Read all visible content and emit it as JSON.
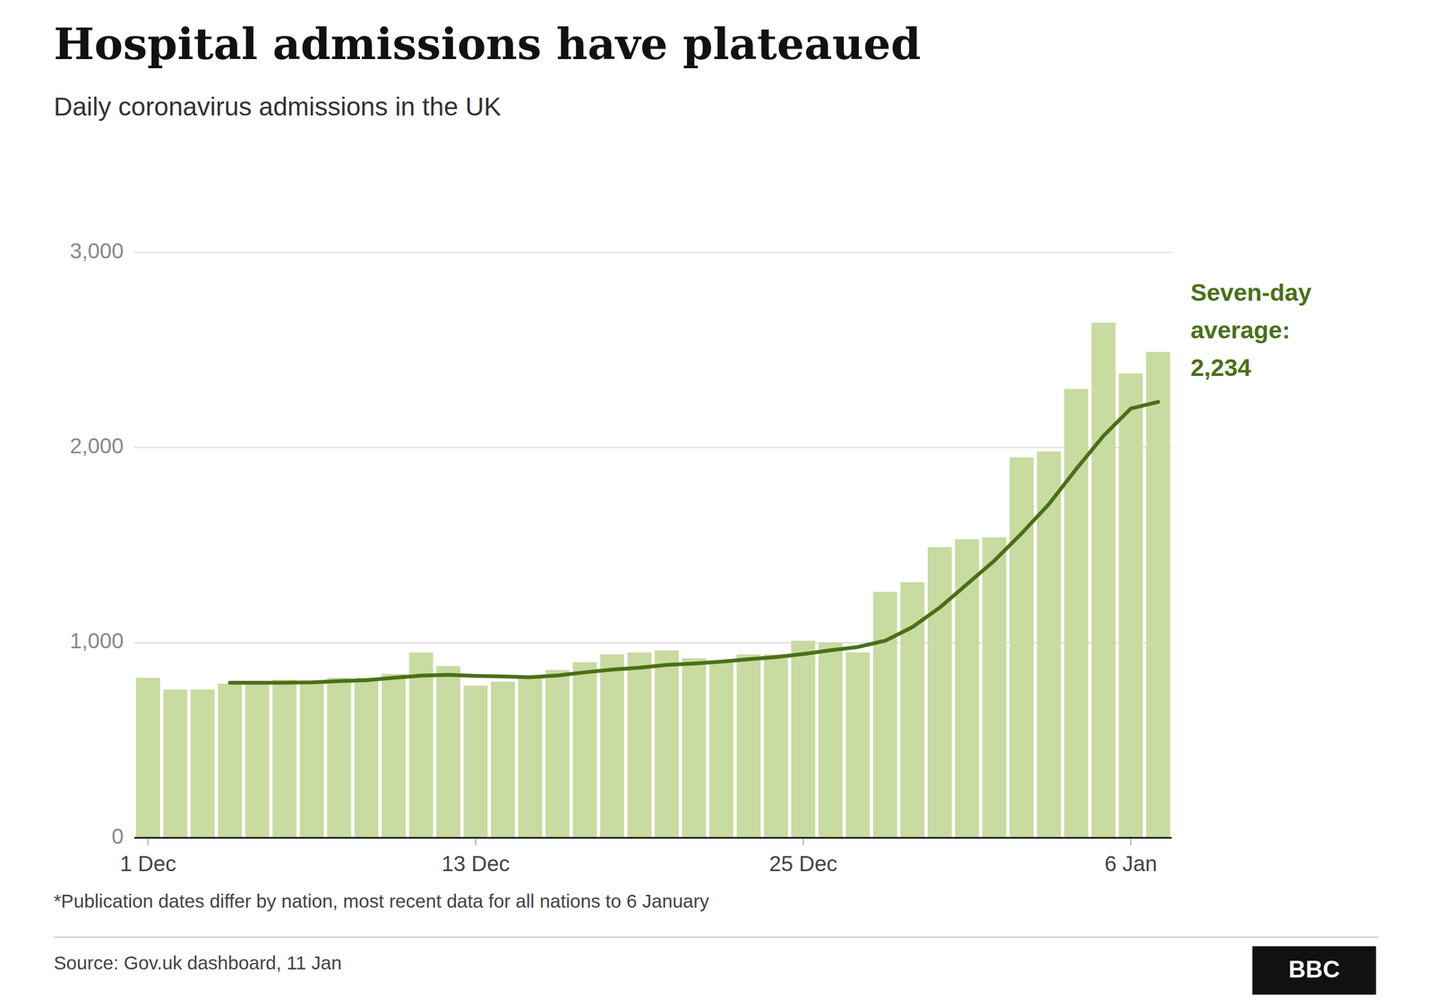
{
  "chart_data": {
    "type": "bar",
    "title": "Hospital admissions have plateaued",
    "subtitle": "Daily coronavirus admissions in the UK",
    "annotation": "Seven-day\naverage:\n2,234",
    "footnote": "*Publication dates differ by nation, most recent data for all nations to 6 January",
    "source": "Source: Gov.uk dashboard, 11 Jan",
    "logo": "BBC",
    "categories": [
      "1 Dec",
      null,
      null,
      null,
      null,
      null,
      null,
      null,
      null,
      null,
      null,
      null,
      "13 Dec",
      null,
      null,
      null,
      null,
      null,
      null,
      null,
      null,
      null,
      null,
      null,
      "25 Dec",
      null,
      null,
      null,
      null,
      null,
      null,
      null,
      null,
      null,
      null,
      null,
      "6 Jan",
      null
    ],
    "series": [
      {
        "type": "bar",
        "color": "#c8dba0",
        "values": [
          820,
          760,
          760,
          790,
          800,
          810,
          800,
          820,
          820,
          840,
          950,
          880,
          780,
          800,
          820,
          860,
          900,
          940,
          950,
          960,
          920,
          900,
          940,
          940,
          1010,
          1000,
          950,
          1260,
          1310,
          1490,
          1530,
          1540,
          1950,
          1980,
          2300,
          2640,
          2380,
          2490
        ]
      },
      {
        "type": "line",
        "color": "#4a7018",
        "values": [
          null,
          null,
          null,
          795,
          795,
          795,
          797,
          803,
          808,
          820,
          831,
          835,
          830,
          827,
          823,
          832,
          848,
          862,
          872,
          886,
          893,
          903,
          915,
          926,
          942,
          961,
          978,
          1010,
          1080,
          1180,
          1300,
          1420,
          1560,
          1710,
          1890,
          2060,
          2200,
          2234
        ]
      }
    ],
    "ylim": [
      0,
      3000
    ],
    "yticks": [
      0,
      {
        "value": 1000,
        "label": "1,000"
      },
      {
        "value": 2000,
        "label": "2,000"
      },
      {
        "value": 3000,
        "label": "3,000"
      }
    ],
    "grid": true
  }
}
